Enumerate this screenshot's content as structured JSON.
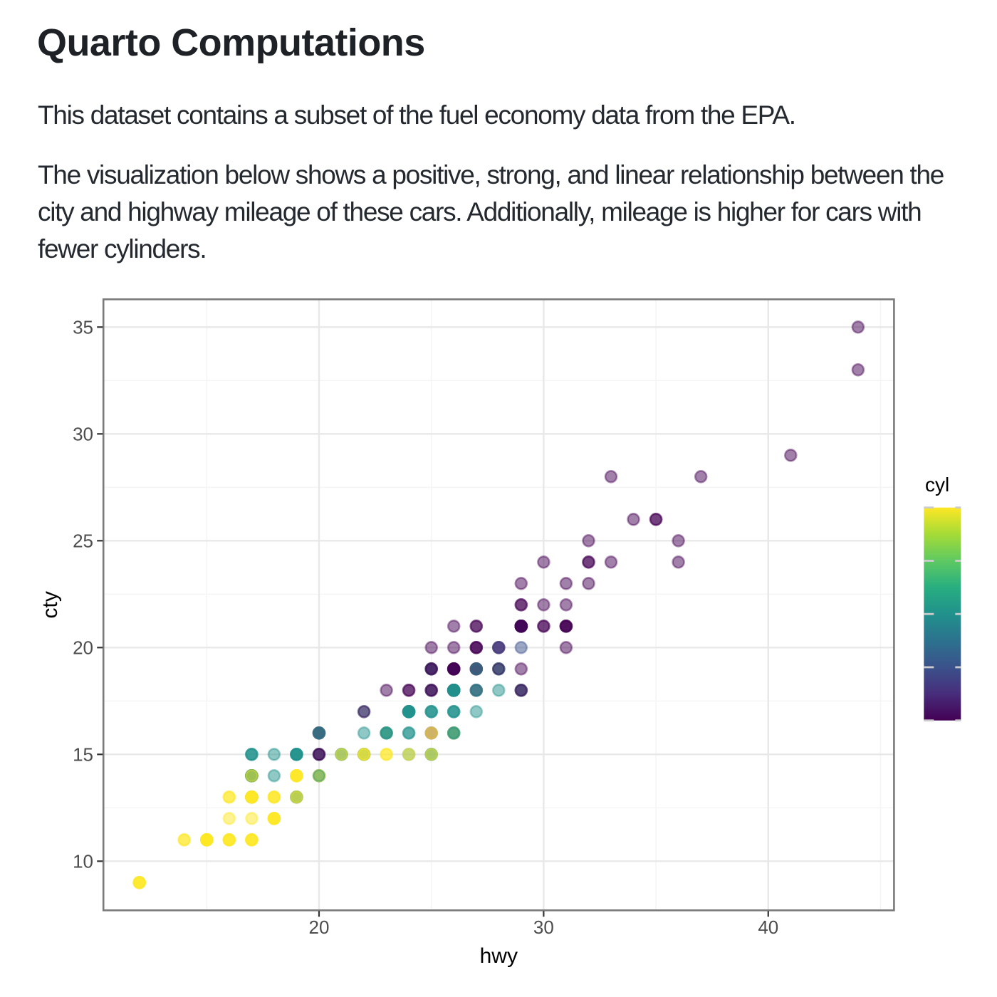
{
  "page": {
    "title": "Quarto Computations",
    "paragraph1": "This dataset contains a subset of the fuel economy data from the EPA.",
    "paragraph2": "The visualization below shows a positive, strong, and linear relationship between the\ncity and highway mileage of these cars. Additionally, mileage is higher for cars with\nfewer cylinders."
  },
  "chart_data": {
    "type": "scatter",
    "xlabel": "hwy",
    "ylabel": "cty",
    "legend_title": "cyl",
    "x_breaks": [
      20,
      30,
      40
    ],
    "x_minor_breaks": [
      15,
      25,
      35,
      45
    ],
    "x_range": [
      10.4,
      45.6
    ],
    "y_breaks": [
      10,
      15,
      20,
      25,
      30,
      35
    ],
    "y_minor_breaks": [
      12.5,
      17.5,
      22.5,
      27.5,
      32.5
    ],
    "y_range": [
      7.7,
      36.3
    ],
    "grid": "on",
    "legend_position": "right",
    "point_alpha": 0.5,
    "color_scale": {
      "name": "viridis",
      "domain": [
        4,
        8
      ],
      "legend_breaks": [
        8,
        7,
        6,
        5,
        4
      ],
      "cyl_colors": {
        "4": "#440154",
        "5": "#3B528B",
        "6": "#21918C",
        "8": "#FDE725"
      },
      "gradient_top_to_bottom": [
        {
          "offset": 0,
          "color": "#FDE725"
        },
        {
          "offset": 0.125,
          "color": "#A5DB36"
        },
        {
          "offset": 0.25,
          "color": "#5EC962"
        },
        {
          "offset": 0.375,
          "color": "#28AE80"
        },
        {
          "offset": 0.5,
          "color": "#21918C"
        },
        {
          "offset": 0.625,
          "color": "#2C728E"
        },
        {
          "offset": 0.75,
          "color": "#3B528B"
        },
        {
          "offset": 0.875,
          "color": "#472D7B"
        },
        {
          "offset": 1,
          "color": "#440154"
        }
      ]
    },
    "points_format": [
      "hwy",
      "cty",
      "cyl"
    ],
    "points": [
      [
        29,
        18,
        4
      ],
      [
        29,
        21,
        4
      ],
      [
        31,
        20,
        4
      ],
      [
        30,
        21,
        4
      ],
      [
        26,
        16,
        6
      ],
      [
        26,
        18,
        6
      ],
      [
        27,
        18,
        6
      ],
      [
        26,
        18,
        4
      ],
      [
        25,
        16,
        4
      ],
      [
        28,
        20,
        4
      ],
      [
        27,
        19,
        4
      ],
      [
        25,
        15,
        6
      ],
      [
        25,
        17,
        6
      ],
      [
        25,
        17,
        6
      ],
      [
        25,
        15,
        6
      ],
      [
        24,
        15,
        6
      ],
      [
        25,
        17,
        6
      ],
      [
        23,
        16,
        8
      ],
      [
        20,
        14,
        8
      ],
      [
        15,
        11,
        8
      ],
      [
        20,
        14,
        8
      ],
      [
        17,
        13,
        8
      ],
      [
        17,
        12,
        8
      ],
      [
        26,
        16,
        8
      ],
      [
        23,
        15,
        8
      ],
      [
        26,
        16,
        8
      ],
      [
        25,
        15,
        8
      ],
      [
        24,
        15,
        8
      ],
      [
        19,
        14,
        8
      ],
      [
        14,
        11,
        8
      ],
      [
        15,
        11,
        8
      ],
      [
        17,
        14,
        8
      ],
      [
        27,
        19,
        4
      ],
      [
        30,
        22,
        4
      ],
      [
        26,
        18,
        6
      ],
      [
        29,
        18,
        6
      ],
      [
        26,
        17,
        6
      ],
      [
        24,
        18,
        4
      ],
      [
        24,
        17,
        6
      ],
      [
        24,
        17,
        6
      ],
      [
        22,
        16,
        6
      ],
      [
        22,
        15,
        6
      ],
      [
        21,
        15,
        6
      ],
      [
        23,
        16,
        6
      ],
      [
        23,
        16,
        6
      ],
      [
        24,
        17,
        6
      ],
      [
        22,
        15,
        6
      ],
      [
        21,
        15,
        6
      ],
      [
        19,
        15,
        6
      ],
      [
        18,
        14,
        6
      ],
      [
        17,
        13,
        6
      ],
      [
        17,
        14,
        6
      ],
      [
        19,
        14,
        8
      ],
      [
        19,
        14,
        8
      ],
      [
        12,
        9,
        8
      ],
      [
        17,
        11,
        8
      ],
      [
        15,
        11,
        8
      ],
      [
        17,
        13,
        6
      ],
      [
        17,
        13,
        8
      ],
      [
        12,
        9,
        8
      ],
      [
        17,
        13,
        8
      ],
      [
        16,
        11,
        8
      ],
      [
        18,
        13,
        8
      ],
      [
        15,
        11,
        8
      ],
      [
        17,
        13,
        8
      ],
      [
        12,
        9,
        8
      ],
      [
        16,
        12,
        8
      ],
      [
        12,
        9,
        8
      ],
      [
        15,
        11,
        8
      ],
      [
        16,
        11,
        8
      ],
      [
        17,
        13,
        8
      ],
      [
        15,
        11,
        8
      ],
      [
        17,
        13,
        8
      ],
      [
        16,
        11,
        8
      ],
      [
        17,
        11,
        8
      ],
      [
        17,
        11,
        8
      ],
      [
        18,
        12,
        8
      ],
      [
        17,
        14,
        6
      ],
      [
        19,
        15,
        6
      ],
      [
        17,
        14,
        6
      ],
      [
        19,
        13,
        6
      ],
      [
        19,
        13,
        8
      ],
      [
        17,
        13,
        8
      ],
      [
        17,
        14,
        6
      ],
      [
        17,
        14,
        6
      ],
      [
        16,
        13,
        8
      ],
      [
        16,
        13,
        8
      ],
      [
        17,
        13,
        8
      ],
      [
        15,
        11,
        8
      ],
      [
        17,
        13,
        8
      ],
      [
        26,
        18,
        6
      ],
      [
        25,
        18,
        6
      ],
      [
        26,
        17,
        6
      ],
      [
        24,
        16,
        6
      ],
      [
        21,
        15,
        8
      ],
      [
        22,
        15,
        8
      ],
      [
        23,
        15,
        8
      ],
      [
        22,
        15,
        8
      ],
      [
        20,
        14,
        8
      ],
      [
        33,
        28,
        4
      ],
      [
        32,
        24,
        4
      ],
      [
        32,
        25,
        4
      ],
      [
        29,
        23,
        4
      ],
      [
        32,
        24,
        4
      ],
      [
        34,
        26,
        4
      ],
      [
        36,
        25,
        4
      ],
      [
        36,
        24,
        4
      ],
      [
        29,
        21,
        4
      ],
      [
        26,
        18,
        4
      ],
      [
        27,
        18,
        4
      ],
      [
        30,
        21,
        4
      ],
      [
        31,
        21,
        4
      ],
      [
        26,
        18,
        6
      ],
      [
        26,
        18,
        6
      ],
      [
        28,
        19,
        6
      ],
      [
        26,
        19,
        4
      ],
      [
        29,
        19,
        4
      ],
      [
        28,
        20,
        4
      ],
      [
        27,
        20,
        4
      ],
      [
        24,
        17,
        6
      ],
      [
        24,
        16,
        6
      ],
      [
        24,
        17,
        6
      ],
      [
        22,
        17,
        6
      ],
      [
        19,
        15,
        6
      ],
      [
        20,
        15,
        6
      ],
      [
        17,
        14,
        8
      ],
      [
        19,
        14,
        8
      ],
      [
        19,
        14,
        8
      ],
      [
        18,
        13,
        8
      ],
      [
        14,
        11,
        8
      ],
      [
        15,
        11,
        8
      ],
      [
        18,
        12,
        8
      ],
      [
        18,
        12,
        8
      ],
      [
        15,
        11,
        8
      ],
      [
        17,
        11,
        8
      ],
      [
        16,
        11,
        8
      ],
      [
        18,
        12,
        8
      ],
      [
        17,
        14,
        6
      ],
      [
        19,
        13,
        6
      ],
      [
        19,
        13,
        8
      ],
      [
        17,
        13,
        8
      ],
      [
        29,
        21,
        4
      ],
      [
        27,
        19,
        4
      ],
      [
        31,
        23,
        4
      ],
      [
        32,
        23,
        4
      ],
      [
        27,
        19,
        6
      ],
      [
        26,
        19,
        6
      ],
      [
        26,
        18,
        6
      ],
      [
        25,
        19,
        6
      ],
      [
        25,
        19,
        6
      ],
      [
        17,
        14,
        6
      ],
      [
        17,
        15,
        6
      ],
      [
        20,
        14,
        6
      ],
      [
        18,
        12,
        8
      ],
      [
        26,
        18,
        6
      ],
      [
        26,
        16,
        6
      ],
      [
        27,
        17,
        6
      ],
      [
        28,
        18,
        6
      ],
      [
        25,
        16,
        8
      ],
      [
        25,
        18,
        4
      ],
      [
        24,
        18,
        4
      ],
      [
        27,
        20,
        4
      ],
      [
        25,
        19,
        4
      ],
      [
        23,
        18,
        4
      ],
      [
        25,
        18,
        4
      ],
      [
        26,
        21,
        4
      ],
      [
        26,
        19,
        4
      ],
      [
        26,
        19,
        4
      ],
      [
        25,
        19,
        4
      ],
      [
        25,
        20,
        4
      ],
      [
        26,
        20,
        4
      ],
      [
        27,
        20,
        4
      ],
      [
        26,
        18,
        4
      ],
      [
        20,
        15,
        4
      ],
      [
        20,
        16,
        4
      ],
      [
        19,
        15,
        6
      ],
      [
        17,
        15,
        6
      ],
      [
        20,
        16,
        6
      ],
      [
        17,
        14,
        8
      ],
      [
        29,
        21,
        4
      ],
      [
        27,
        21,
        4
      ],
      [
        31,
        21,
        4
      ],
      [
        31,
        21,
        4
      ],
      [
        26,
        18,
        6
      ],
      [
        26,
        18,
        6
      ],
      [
        28,
        19,
        6
      ],
      [
        27,
        21,
        4
      ],
      [
        29,
        21,
        4
      ],
      [
        31,
        21,
        4
      ],
      [
        31,
        22,
        4
      ],
      [
        26,
        18,
        6
      ],
      [
        26,
        18,
        6
      ],
      [
        27,
        18,
        6
      ],
      [
        30,
        24,
        4
      ],
      [
        33,
        24,
        4
      ],
      [
        35,
        26,
        4
      ],
      [
        37,
        28,
        4
      ],
      [
        35,
        26,
        4
      ],
      [
        15,
        11,
        8
      ],
      [
        18,
        13,
        8
      ],
      [
        20,
        15,
        4
      ],
      [
        20,
        16,
        4
      ],
      [
        22,
        17,
        4
      ],
      [
        17,
        15,
        6
      ],
      [
        19,
        15,
        6
      ],
      [
        18,
        15,
        6
      ],
      [
        20,
        16,
        6
      ],
      [
        29,
        21,
        4
      ],
      [
        26,
        19,
        4
      ],
      [
        29,
        21,
        4
      ],
      [
        29,
        22,
        4
      ],
      [
        24,
        17,
        6
      ],
      [
        44,
        33,
        4
      ],
      [
        29,
        21,
        4
      ],
      [
        26,
        19,
        4
      ],
      [
        29,
        22,
        4
      ],
      [
        29,
        21,
        4
      ],
      [
        29,
        21,
        5
      ],
      [
        29,
        21,
        5
      ],
      [
        23,
        16,
        6
      ],
      [
        24,
        17,
        6
      ],
      [
        44,
        35,
        4
      ],
      [
        41,
        29,
        4
      ],
      [
        29,
        21,
        4
      ],
      [
        26,
        19,
        4
      ],
      [
        28,
        20,
        5
      ],
      [
        29,
        20,
        5
      ],
      [
        29,
        21,
        4
      ],
      [
        29,
        18,
        4
      ],
      [
        28,
        19,
        4
      ],
      [
        29,
        21,
        4
      ],
      [
        26,
        16,
        6
      ],
      [
        26,
        18,
        6
      ],
      [
        26,
        17,
        6
      ]
    ]
  },
  "style": {
    "panel_border_color": "#7a7a7a",
    "major_grid_color": "#e8e8e8",
    "minor_grid_color": "#f4f4f4",
    "axis_tick_color": "#333333",
    "axis_text_color": "#4d4d4d",
    "legend_tick_color": "#cccccc",
    "background": "#ffffff"
  }
}
